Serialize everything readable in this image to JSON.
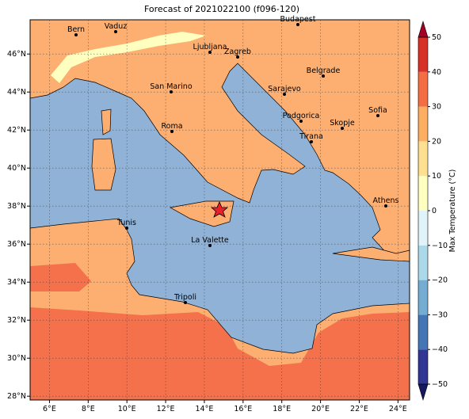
{
  "map": {
    "title": "Forecast of 2021022100 (f096-120)",
    "xlim": [
      5,
      24.6
    ],
    "ylim": [
      27.8,
      47.8
    ],
    "xticks": [
      {
        "value": 6,
        "label": "6°E"
      },
      {
        "value": 8,
        "label": "8°E"
      },
      {
        "value": 10,
        "label": "10°E"
      },
      {
        "value": 12,
        "label": "12°E"
      },
      {
        "value": 14,
        "label": "14°E"
      },
      {
        "value": 16,
        "label": "16°E"
      },
      {
        "value": 18,
        "label": "18°E"
      },
      {
        "value": 20,
        "label": "20°E"
      },
      {
        "value": 22,
        "label": "22°E"
      },
      {
        "value": 24,
        "label": "24°E"
      }
    ],
    "yticks": [
      {
        "value": 28,
        "label": "28°N"
      },
      {
        "value": 30,
        "label": "30°N"
      },
      {
        "value": 32,
        "label": "32°N"
      },
      {
        "value": 34,
        "label": "34°N"
      },
      {
        "value": 36,
        "label": "36°N"
      },
      {
        "value": 38,
        "label": "38°N"
      },
      {
        "value": 40,
        "label": "40°N"
      },
      {
        "value": 42,
        "label": "42°N"
      },
      {
        "value": 44,
        "label": "44°N"
      },
      {
        "value": 46,
        "label": "46°N"
      }
    ],
    "grid": true,
    "cities": [
      "Bern",
      "Vaduz",
      "Budapest",
      "Ljubljana",
      "Zagreb",
      "Belgrade",
      "San Marino",
      "Sarajevo",
      "Sofia",
      "Podgorica",
      "Skopje",
      "Roma",
      "Tirana",
      "Athens",
      "Tunis",
      "La Valette",
      "Tripoli"
    ],
    "colorbar": {
      "label": "Max Temperature (°C)",
      "range": [
        -50,
        50
      ],
      "ticks": [
        {
          "value": -50,
          "label": "−50"
        },
        {
          "value": -40,
          "label": "−40"
        },
        {
          "value": -30,
          "label": "−30"
        },
        {
          "value": -20,
          "label": "−20"
        },
        {
          "value": -10,
          "label": "−10"
        },
        0,
        10,
        20,
        30,
        40,
        50
      ],
      "colors": [
        "#313695",
        "#4575b4",
        "#74add1",
        "#abd9e9",
        "#e0f3f8",
        "#ffffbf",
        "#fee090",
        "#fdae61",
        "#f46d43",
        "#d73027"
      ],
      "extend_colors": [
        "#131a60",
        "#a50026"
      ]
    }
  }
}
